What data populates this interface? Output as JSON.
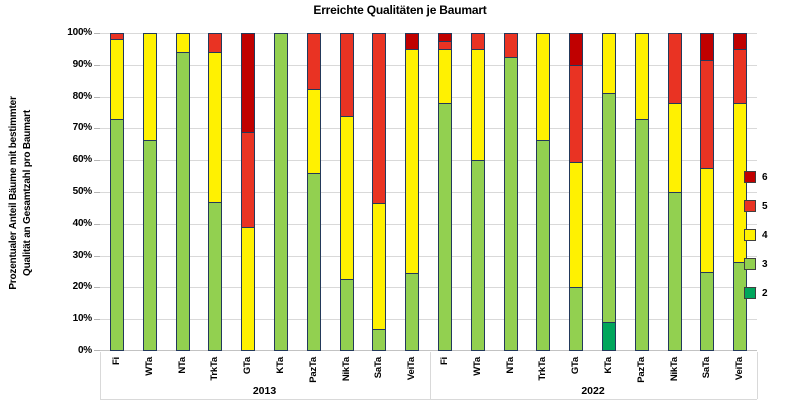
{
  "chart_data": {
    "type": "bar",
    "stacked": true,
    "title": "Erreichte Qualitäten je Baumart",
    "ylabel_lines": [
      "Prozentualer Anteil Bäume mit bestimmter",
      "Qualität an Gesamtzahl pro Baumart"
    ],
    "ylim": [
      0,
      100
    ],
    "ytick_step": 10,
    "ytick_suffix": "%",
    "grid": true,
    "legend_position": "right",
    "legend": [
      {
        "label": "6",
        "color": "#C00000"
      },
      {
        "label": "5",
        "color": "#E93323"
      },
      {
        "label": "4",
        "color": "#FFF101"
      },
      {
        "label": "3",
        "color": "#92D050"
      },
      {
        "label": "2",
        "color": "#00A65C"
      }
    ],
    "quality_order_bottom_to_top": [
      "2",
      "3",
      "4",
      "5",
      "6"
    ],
    "groups": [
      {
        "label": "2013",
        "bars": [
          {
            "species": "Fi",
            "segments": {
              "3": 73,
              "4": 25,
              "5": 2
            }
          },
          {
            "species": "WTa",
            "segments": {
              "3": 66.5,
              "4": 33.5
            }
          },
          {
            "species": "NTa",
            "segments": {
              "3": 94,
              "4": 6
            }
          },
          {
            "species": "TrkTa",
            "segments": {
              "3": 47,
              "4": 47,
              "5": 6
            }
          },
          {
            "species": "GTa",
            "segments": {
              "4": 39,
              "5": 30,
              "6": 31
            }
          },
          {
            "species": "KTa",
            "segments": {
              "3": 100
            }
          },
          {
            "species": "PazTa",
            "segments": {
              "3": 56,
              "4": 26.5,
              "5": 17.5
            }
          },
          {
            "species": "NikTa",
            "segments": {
              "3": 22.5,
              "4": 51.5,
              "5": 26
            }
          },
          {
            "species": "SaTa",
            "segments": {
              "3": 7,
              "4": 39.5,
              "5": 53.5
            }
          },
          {
            "species": "VeiTa",
            "segments": {
              "3": 24.5,
              "4": 70.5,
              "6": 5
            }
          }
        ]
      },
      {
        "label": "2022",
        "bars": [
          {
            "species": "Fi",
            "segments": {
              "3": 78,
              "4": 17,
              "5": 2.5,
              "6": 2.5
            }
          },
          {
            "species": "WTa",
            "segments": {
              "3": 60,
              "4": 35,
              "5": 5
            }
          },
          {
            "species": "NTa",
            "segments": {
              "3": 92.5,
              "5": 7.5
            }
          },
          {
            "species": "TrkTa",
            "segments": {
              "3": 66.5,
              "4": 33.5
            }
          },
          {
            "species": "GTa",
            "segments": {
              "3": 20,
              "4": 39.5,
              "5": 30.5,
              "6": 10
            }
          },
          {
            "species": "KTa",
            "segments": {
              "2": 9,
              "3": 72,
              "4": 19
            }
          },
          {
            "species": "PazTa",
            "segments": {
              "3": 73,
              "4": 27
            }
          },
          {
            "species": "NikTa",
            "segments": {
              "3": 50,
              "4": 28,
              "5": 22
            }
          },
          {
            "species": "SaTa",
            "segments": {
              "3": 25,
              "4": 32.5,
              "5": 34,
              "6": 8.5
            }
          },
          {
            "species": "VeiTa",
            "segments": {
              "3": 28,
              "4": 50,
              "5": 17,
              "6": 5
            }
          }
        ]
      }
    ],
    "colors": {
      "bar_border": "#23395B",
      "gridline": "#D9D9D9",
      "axis_line": "#C3C3C3",
      "tick": "#B3B3B3",
      "text": "#000000"
    }
  }
}
